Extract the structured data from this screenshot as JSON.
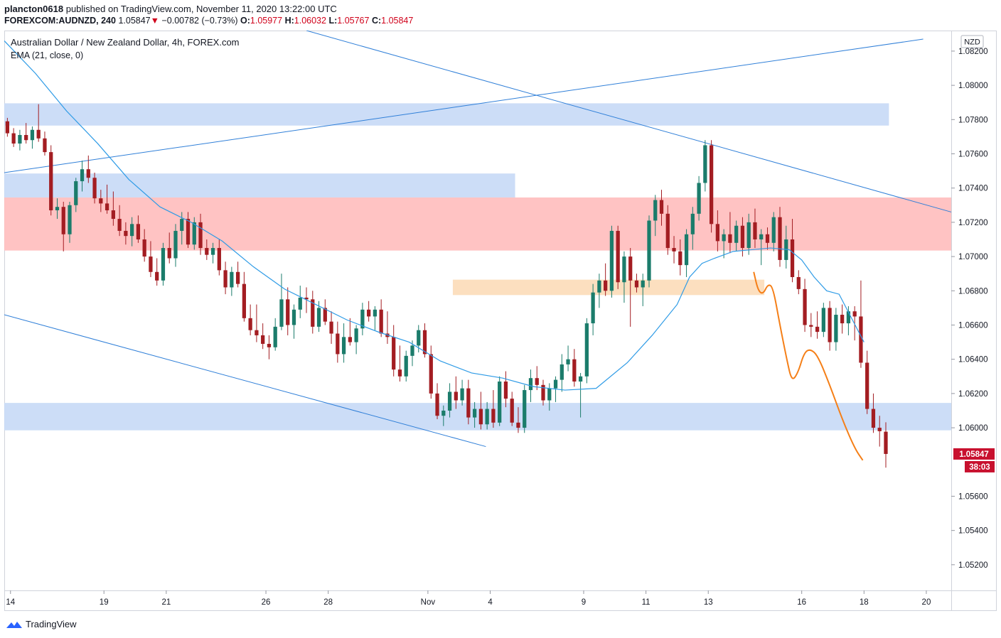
{
  "header": {
    "publisher": "plancton0618",
    "published_text": "published on TradingView.com, November 11, 2020 13:22:00 UTC",
    "symbol": "FOREXCOM:AUDNZD, 240",
    "last": "1.05847",
    "change_arrow": "▼",
    "change": "−0.00782 (−0.73%)",
    "o_label": "O:",
    "o_value": "1.05977",
    "h_label": "H:",
    "h_value": "1.06032",
    "l_label": "L:",
    "l_value": "1.05767",
    "c_label": "C:",
    "c_value": "1.05847"
  },
  "footer": {
    "brand": "TradingView",
    "logo_icon": "tradingview-logo-icon"
  },
  "chart_data": {
    "type": "candlestick",
    "title": "Australian Dollar / New Zealand Dollar, 4h, FOREX.com",
    "indicator": "EMA (21, close, 0)",
    "currency_badge": "NZD",
    "ylim": [
      1.0505,
      1.0832
    ],
    "yticks": [
      "1.08200",
      "1.08000",
      "1.07800",
      "1.07600",
      "1.07400",
      "1.07200",
      "1.07000",
      "1.06800",
      "1.06600",
      "1.06400",
      "1.06200",
      "1.06000",
      "1.05600",
      "1.05400",
      "1.05200"
    ],
    "x_index_range": [
      0,
      152
    ],
    "xticks": [
      {
        "label": "14",
        "i": 1
      },
      {
        "label": "19",
        "i": 16
      },
      {
        "label": "21",
        "i": 26
      },
      {
        "label": "26",
        "i": 42
      },
      {
        "label": "28",
        "i": 52
      },
      {
        "label": "Nov",
        "i": 68
      },
      {
        "label": "4",
        "i": 78
      },
      {
        "label": "9",
        "i": 93
      },
      {
        "label": "11",
        "i": 103
      },
      {
        "label": "13",
        "i": 113
      },
      {
        "label": "16",
        "i": 128
      },
      {
        "label": "18",
        "i": 138
      },
      {
        "label": "20",
        "i": 148
      }
    ],
    "last_price": "1.05847",
    "countdown": "38:03",
    "colors": {
      "up": "#1b7c6b",
      "down": "#a31d22",
      "ema": "#2e9be6",
      "projection": "#f57f17",
      "last_price": "#c8102e",
      "zone_blue": "#c6d9f6",
      "zone_red": "#ffbcbc",
      "zone_orange": "#fcdcb8",
      "trendline": "#2f7fd8"
    },
    "zones": [
      {
        "kind": "blue",
        "i0": 0,
        "i1": 142,
        "y0": 1.07765,
        "y1": 1.07895
      },
      {
        "kind": "blue",
        "i0": 0,
        "i1": 82,
        "y0": 1.07345,
        "y1": 1.07485
      },
      {
        "kind": "red",
        "i0": 0,
        "i1": 152,
        "y0": 1.07035,
        "y1": 1.07345
      },
      {
        "kind": "orange",
        "i0": 72,
        "i1": 122,
        "y0": 1.06775,
        "y1": 1.06865
      },
      {
        "kind": "blue",
        "i0": 0,
        "i1": 152,
        "y0": 1.05985,
        "y1": 1.06145
      }
    ],
    "trendlines": [
      {
        "i0": 0,
        "y0": 1.0749,
        "i1": 147.5,
        "y1": 1.0827
      },
      {
        "i0": 48.5,
        "y0": 1.0832,
        "i1": 152,
        "y1": 1.0726
      },
      {
        "i0": 0,
        "y0": 1.0666,
        "i1": 77.3,
        "y1": 1.0589
      }
    ],
    "candles": [
      [
        1.0779,
        1.0781,
        1.077,
        1.0772
      ],
      [
        1.0772,
        1.0775,
        1.0764,
        1.0766
      ],
      [
        1.0766,
        1.0774,
        1.0762,
        1.0771
      ],
      [
        1.0771,
        1.0778,
        1.0766,
        1.0768
      ],
      [
        1.0768,
        1.0776,
        1.0763,
        1.0774
      ],
      [
        1.0774,
        1.0789,
        1.0767,
        1.0769
      ],
      [
        1.0769,
        1.0773,
        1.0759,
        1.0761
      ],
      [
        1.0761,
        1.0765,
        1.0724,
        1.0727
      ],
      [
        1.0727,
        1.0734,
        1.0722,
        1.0729
      ],
      [
        1.0729,
        1.0732,
        1.0703,
        1.0713
      ],
      [
        1.0713,
        1.0732,
        1.0708,
        1.073
      ],
      [
        1.073,
        1.0746,
        1.0726,
        1.0744
      ],
      [
        1.0744,
        1.0756,
        1.0738,
        1.0751
      ],
      [
        1.0751,
        1.0759,
        1.0743,
        1.0746
      ],
      [
        1.0746,
        1.0749,
        1.0731,
        1.0734
      ],
      [
        1.0734,
        1.0739,
        1.0726,
        1.0731
      ],
      [
        1.0731,
        1.0742,
        1.0725,
        1.0727
      ],
      [
        1.0727,
        1.0738,
        1.0718,
        1.0722
      ],
      [
        1.0722,
        1.073,
        1.0712,
        1.0715
      ],
      [
        1.0715,
        1.072,
        1.0707,
        1.0712
      ],
      [
        1.0712,
        1.0723,
        1.0706,
        1.0719
      ],
      [
        1.0719,
        1.0724,
        1.0708,
        1.071
      ],
      [
        1.071,
        1.0716,
        1.0697,
        1.07
      ],
      [
        1.07,
        1.0709,
        1.0688,
        1.0691
      ],
      [
        1.0691,
        1.0699,
        1.0683,
        1.0686
      ],
      [
        1.0686,
        1.0708,
        1.0683,
        1.0705
      ],
      [
        1.0705,
        1.0714,
        1.0696,
        1.0699
      ],
      [
        1.0699,
        1.0719,
        1.0694,
        1.0715
      ],
      [
        1.0715,
        1.0726,
        1.0707,
        1.0722
      ],
      [
        1.0722,
        1.0726,
        1.0705,
        1.0707
      ],
      [
        1.0707,
        1.0723,
        1.0704,
        1.072
      ],
      [
        1.072,
        1.0725,
        1.0701,
        1.0705
      ],
      [
        1.0705,
        1.071,
        1.0698,
        1.0701
      ],
      [
        1.0701,
        1.0708,
        1.0696,
        1.0705
      ],
      [
        1.0705,
        1.071,
        1.0689,
        1.0692
      ],
      [
        1.0692,
        1.0697,
        1.0678,
        1.0682
      ],
      [
        1.0682,
        1.0694,
        1.0677,
        1.0691
      ],
      [
        1.0691,
        1.0697,
        1.0682,
        1.0684
      ],
      [
        1.0684,
        1.0691,
        1.0662,
        1.0664
      ],
      [
        1.0664,
        1.0672,
        1.0654,
        1.0657
      ],
      [
        1.0657,
        1.0672,
        1.065,
        1.0654
      ],
      [
        1.0654,
        1.0661,
        1.0646,
        1.0649
      ],
      [
        1.0649,
        1.0654,
        1.064,
        1.0647
      ],
      [
        1.0647,
        1.0664,
        1.0645,
        1.0659
      ],
      [
        1.0659,
        1.069,
        1.0657,
        1.0675
      ],
      [
        1.0675,
        1.0682,
        1.0654,
        1.066
      ],
      [
        1.066,
        1.0672,
        1.0652,
        1.0669
      ],
      [
        1.0669,
        1.0683,
        1.0664,
        1.0676
      ],
      [
        1.0676,
        1.0682,
        1.0667,
        1.0675
      ],
      [
        1.0675,
        1.068,
        1.0655,
        1.0659
      ],
      [
        1.0659,
        1.0674,
        1.0656,
        1.067
      ],
      [
        1.067,
        1.0675,
        1.066,
        1.0662
      ],
      [
        1.0662,
        1.0668,
        1.0649,
        1.0655
      ],
      [
        1.0655,
        1.0662,
        1.0638,
        1.0643
      ],
      [
        1.0643,
        1.0661,
        1.0638,
        1.0653
      ],
      [
        1.0653,
        1.0664,
        1.0648,
        1.065
      ],
      [
        1.065,
        1.066,
        1.0643,
        1.0658
      ],
      [
        1.0658,
        1.0673,
        1.0654,
        1.0669
      ],
      [
        1.0669,
        1.0674,
        1.0662,
        1.0665
      ],
      [
        1.0665,
        1.0671,
        1.0657,
        1.0669
      ],
      [
        1.0669,
        1.0675,
        1.0653,
        1.0655
      ],
      [
        1.0655,
        1.0668,
        1.0649,
        1.0653
      ],
      [
        1.0653,
        1.066,
        1.063,
        1.0634
      ],
      [
        1.0634,
        1.0648,
        1.0627,
        1.063
      ],
      [
        1.063,
        1.0645,
        1.0627,
        1.0642
      ],
      [
        1.0642,
        1.0651,
        1.0636,
        1.0648
      ],
      [
        1.0648,
        1.066,
        1.0644,
        1.0657
      ],
      [
        1.0657,
        1.0661,
        1.0641,
        1.0643
      ],
      [
        1.0643,
        1.0648,
        1.0617,
        1.062
      ],
      [
        1.062,
        1.0626,
        1.0605,
        1.0607
      ],
      [
        1.0607,
        1.0613,
        1.0601,
        1.061
      ],
      [
        1.061,
        1.0626,
        1.0606,
        1.0621
      ],
      [
        1.0621,
        1.063,
        1.0611,
        1.0616
      ],
      [
        1.0616,
        1.0628,
        1.0613,
        1.0623
      ],
      [
        1.0623,
        1.0628,
        1.0602,
        1.0606
      ],
      [
        1.0606,
        1.0615,
        1.06,
        1.0611
      ],
      [
        1.0611,
        1.0621,
        1.0599,
        1.0602
      ],
      [
        1.0602,
        1.0615,
        1.0599,
        1.0611
      ],
      [
        1.0611,
        1.0622,
        1.06,
        1.0603
      ],
      [
        1.0603,
        1.063,
        1.0601,
        1.0627
      ],
      [
        1.0627,
        1.0633,
        1.0612,
        1.0617
      ],
      [
        1.0617,
        1.0621,
        1.0601,
        1.0603
      ],
      [
        1.0603,
        1.0612,
        1.0597,
        1.06
      ],
      [
        1.06,
        1.0625,
        1.0597,
        1.0622
      ],
      [
        1.0622,
        1.0634,
        1.0615,
        1.0629
      ],
      [
        1.0629,
        1.0636,
        1.0622,
        1.0625
      ],
      [
        1.0625,
        1.0628,
        1.0613,
        1.0616
      ],
      [
        1.0616,
        1.0626,
        1.061,
        1.0623
      ],
      [
        1.0623,
        1.063,
        1.0615,
        1.0628
      ],
      [
        1.0628,
        1.0643,
        1.0621,
        1.0637
      ],
      [
        1.0637,
        1.0648,
        1.0633,
        1.064
      ],
      [
        1.064,
        1.0646,
        1.0624,
        1.0627
      ],
      [
        1.0627,
        1.0632,
        1.0606,
        1.063
      ],
      [
        1.063,
        1.0664,
        1.0626,
        1.0661
      ],
      [
        1.0661,
        1.0684,
        1.0654,
        1.0679
      ],
      [
        1.0679,
        1.069,
        1.067,
        1.0686
      ],
      [
        1.0686,
        1.0696,
        1.0677,
        1.068
      ],
      [
        1.068,
        1.0718,
        1.0676,
        1.0715
      ],
      [
        1.0715,
        1.0718,
        1.0681,
        1.0685
      ],
      [
        1.0685,
        1.0703,
        1.0673,
        1.07
      ],
      [
        1.07,
        1.0705,
        1.0659,
        1.0686
      ],
      [
        1.0686,
        1.069,
        1.0679,
        1.0682
      ],
      [
        1.0682,
        1.069,
        1.0671,
        1.0686
      ],
      [
        1.0686,
        1.0724,
        1.0682,
        1.0721
      ],
      [
        1.0721,
        1.0736,
        1.0712,
        1.0733
      ],
      [
        1.0733,
        1.0739,
        1.0718,
        1.0725
      ],
      [
        1.0725,
        1.073,
        1.0701,
        1.0705
      ],
      [
        1.0705,
        1.0712,
        1.0696,
        1.0703
      ],
      [
        1.0703,
        1.071,
        1.0689,
        1.0695
      ],
      [
        1.0695,
        1.0716,
        1.0688,
        1.0713
      ],
      [
        1.0713,
        1.0729,
        1.0704,
        1.0725
      ],
      [
        1.0725,
        1.0747,
        1.0721,
        1.0743
      ],
      [
        1.0743,
        1.0768,
        1.0738,
        1.0765
      ],
      [
        1.0765,
        1.0768,
        1.0714,
        1.0719
      ],
      [
        1.0719,
        1.0727,
        1.0703,
        1.0709
      ],
      [
        1.0709,
        1.0716,
        1.0699,
        1.0713
      ],
      [
        1.0713,
        1.0726,
        1.0702,
        1.0708
      ],
      [
        1.0708,
        1.0721,
        1.0703,
        1.0718
      ],
      [
        1.0718,
        1.0723,
        1.07,
        1.0705
      ],
      [
        1.0705,
        1.0725,
        1.0701,
        1.072
      ],
      [
        1.072,
        1.0728,
        1.0705,
        1.071
      ],
      [
        1.071,
        1.0716,
        1.0695,
        1.0713
      ],
      [
        1.0713,
        1.0717,
        1.0704,
        1.0708
      ],
      [
        1.0708,
        1.0726,
        1.0703,
        1.0723
      ],
      [
        1.0723,
        1.0729,
        1.0694,
        1.0698
      ],
      [
        1.0698,
        1.0718,
        1.0693,
        1.071
      ],
      [
        1.071,
        1.0722,
        1.0685,
        1.0688
      ],
      [
        1.0688,
        1.0692,
        1.0678,
        1.0681
      ],
      [
        1.0681,
        1.0687,
        1.0656,
        1.066
      ],
      [
        1.066,
        1.0667,
        1.0653,
        1.0659
      ],
      [
        1.0659,
        1.0668,
        1.0652,
        1.0656
      ],
      [
        1.0656,
        1.0673,
        1.0653,
        1.067
      ],
      [
        1.067,
        1.0674,
        1.0645,
        1.065
      ],
      [
        1.065,
        1.067,
        1.0645,
        1.0666
      ],
      [
        1.0666,
        1.0672,
        1.0655,
        1.0661
      ],
      [
        1.0661,
        1.0671,
        1.0654,
        1.0668
      ],
      [
        1.0668,
        1.0671,
        1.0651,
        1.0665
      ],
      [
        1.0665,
        1.0686,
        1.0635,
        1.0638
      ],
      [
        1.0638,
        1.0645,
        1.0608,
        1.0611
      ],
      [
        1.0611,
        1.062,
        1.0597,
        1.06
      ],
      [
        1.06,
        1.0607,
        1.0589,
        1.0598
      ],
      [
        1.05977,
        1.06032,
        1.05767,
        1.05847
      ]
    ],
    "ema": [
      [
        0,
        1.0826
      ],
      [
        5,
        1.0807
      ],
      [
        10,
        1.0785
      ],
      [
        15,
        1.0766
      ],
      [
        20,
        1.0745
      ],
      [
        25,
        1.0729
      ],
      [
        30,
        1.072
      ],
      [
        35,
        1.0709
      ],
      [
        40,
        1.0694
      ],
      [
        45,
        1.0681
      ],
      [
        50,
        1.0672
      ],
      [
        55,
        1.0663
      ],
      [
        60,
        1.0656
      ],
      [
        65,
        1.065
      ],
      [
        70,
        1.0639
      ],
      [
        75,
        1.0632
      ],
      [
        80,
        1.0629
      ],
      [
        85,
        1.0624
      ],
      [
        90,
        1.0622
      ],
      [
        95,
        1.0623
      ],
      [
        100,
        1.0638
      ],
      [
        104,
        1.0654
      ],
      [
        108,
        1.0672
      ],
      [
        110,
        1.0688
      ],
      [
        112,
        1.0696
      ],
      [
        114,
        1.0699
      ],
      [
        117,
        1.0703
      ],
      [
        120,
        1.0704
      ],
      [
        123,
        1.0705
      ],
      [
        126,
        1.0704
      ],
      [
        128,
        1.0698
      ],
      [
        130,
        1.0688
      ],
      [
        132,
        1.068
      ],
      [
        134,
        1.0678
      ],
      [
        136,
        1.0664
      ],
      [
        138,
        1.065
      ]
    ],
    "projection": [
      [
        120.3,
        1.0691
      ],
      [
        121,
        1.068
      ],
      [
        121.8,
        1.0678
      ],
      [
        122.6,
        1.0684
      ],
      [
        123.4,
        1.0682
      ],
      [
        124.5,
        1.066
      ],
      [
        125.6,
        1.064
      ],
      [
        126.4,
        1.0627
      ],
      [
        127.4,
        1.0632
      ],
      [
        128.4,
        1.0644
      ],
      [
        129.4,
        1.0646
      ],
      [
        130.6,
        1.0642
      ],
      [
        132.5,
        1.0625
      ],
      [
        134.5,
        1.0605
      ],
      [
        136.5,
        1.0588
      ],
      [
        137.8,
        1.0581
      ]
    ]
  }
}
